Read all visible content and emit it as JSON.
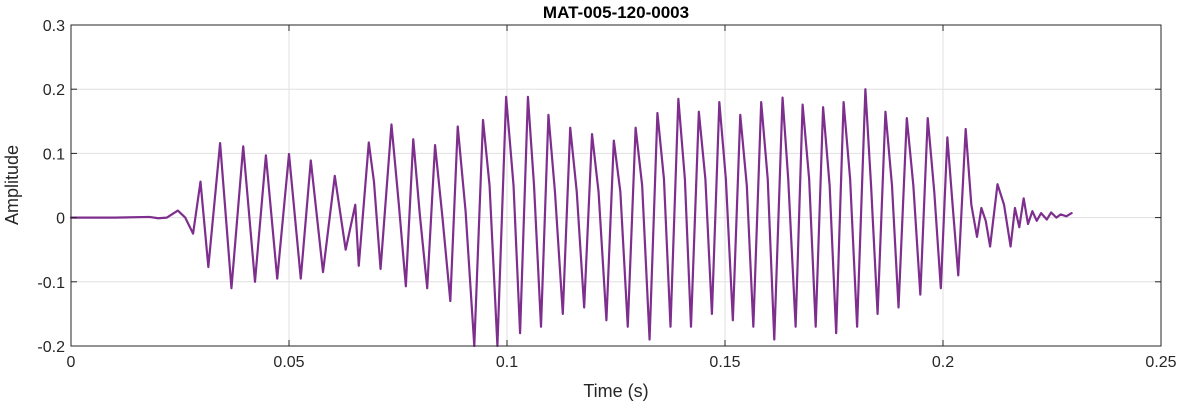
{
  "chart_data": {
    "type": "line",
    "title": "MAT-005-120-0003",
    "xlabel": "Time (s)",
    "ylabel": "Amplitude",
    "xlim": [
      0,
      0.25
    ],
    "ylim": [
      -0.2,
      0.3
    ],
    "xticks": [
      0,
      0.05,
      0.1,
      0.15,
      0.2,
      0.25
    ],
    "xtick_labels": [
      "0",
      "0.05",
      "0.1",
      "0.15",
      "0.2",
      "0.25"
    ],
    "yticks": [
      -0.2,
      -0.1,
      0,
      0.1,
      0.2,
      0.3
    ],
    "ytick_labels": [
      "-0.2",
      "-0.1",
      "0",
      "0.1",
      "0.2",
      "0.3"
    ],
    "grid": true,
    "series": [
      {
        "color": "#7e2f8e",
        "points": [
          [
            0.0,
            0.0
          ],
          [
            0.01,
            0.0
          ],
          [
            0.018,
            0.001
          ],
          [
            0.02,
            -0.001
          ],
          [
            0.022,
            0.0
          ],
          [
            0.0245,
            0.011
          ],
          [
            0.0262,
            0.0
          ],
          [
            0.028,
            -0.025
          ],
          [
            0.0297,
            0.056
          ],
          [
            0.0315,
            -0.077
          ],
          [
            0.0342,
            0.116
          ],
          [
            0.0368,
            -0.11
          ],
          [
            0.0395,
            0.111
          ],
          [
            0.0422,
            -0.1
          ],
          [
            0.0447,
            0.097
          ],
          [
            0.0473,
            -0.095
          ],
          [
            0.05,
            0.099
          ],
          [
            0.0527,
            -0.095
          ],
          [
            0.055,
            0.089
          ],
          [
            0.0578,
            -0.085
          ],
          [
            0.0605,
            0.065
          ],
          [
            0.063,
            -0.05
          ],
          [
            0.0652,
            0.02
          ],
          [
            0.066,
            -0.075
          ],
          [
            0.0683,
            0.117
          ],
          [
            0.0695,
            0.055
          ],
          [
            0.071,
            -0.08
          ],
          [
            0.0735,
            0.145
          ],
          [
            0.0752,
            0.02
          ],
          [
            0.0768,
            -0.107
          ],
          [
            0.0785,
            0.122
          ],
          [
            0.08,
            0.005
          ],
          [
            0.0817,
            -0.11
          ],
          [
            0.0835,
            0.113
          ],
          [
            0.0852,
            0.0
          ],
          [
            0.087,
            -0.13
          ],
          [
            0.0887,
            0.142
          ],
          [
            0.0905,
            0.01
          ],
          [
            0.0925,
            -0.2
          ],
          [
            0.0945,
            0.152
          ],
          [
            0.096,
            0.05
          ],
          [
            0.0978,
            -0.2
          ],
          [
            0.0998,
            0.188
          ],
          [
            0.1015,
            0.05
          ],
          [
            0.103,
            -0.18
          ],
          [
            0.1048,
            0.188
          ],
          [
            0.1062,
            0.05
          ],
          [
            0.1078,
            -0.17
          ],
          [
            0.1095,
            0.16
          ],
          [
            0.111,
            0.04
          ],
          [
            0.1128,
            -0.15
          ],
          [
            0.1145,
            0.14
          ],
          [
            0.116,
            0.04
          ],
          [
            0.1177,
            -0.14
          ],
          [
            0.1195,
            0.13
          ],
          [
            0.121,
            0.04
          ],
          [
            0.1228,
            -0.16
          ],
          [
            0.1245,
            0.12
          ],
          [
            0.126,
            0.04
          ],
          [
            0.1277,
            -0.17
          ],
          [
            0.1295,
            0.14
          ],
          [
            0.131,
            0.05
          ],
          [
            0.1327,
            -0.19
          ],
          [
            0.1345,
            0.163
          ],
          [
            0.136,
            0.06
          ],
          [
            0.1375,
            -0.17
          ],
          [
            0.1393,
            0.185
          ],
          [
            0.1408,
            0.06
          ],
          [
            0.1422,
            -0.17
          ],
          [
            0.144,
            0.165
          ],
          [
            0.1455,
            0.06
          ],
          [
            0.147,
            -0.15
          ],
          [
            0.1487,
            0.18
          ],
          [
            0.1502,
            0.06
          ],
          [
            0.1518,
            -0.16
          ],
          [
            0.1535,
            0.16
          ],
          [
            0.155,
            0.05
          ],
          [
            0.1565,
            -0.17
          ],
          [
            0.1583,
            0.18
          ],
          [
            0.1598,
            0.06
          ],
          [
            0.1613,
            -0.19
          ],
          [
            0.1632,
            0.187
          ],
          [
            0.1645,
            0.06
          ],
          [
            0.1662,
            -0.17
          ],
          [
            0.1678,
            0.176
          ],
          [
            0.1693,
            0.06
          ],
          [
            0.1708,
            -0.17
          ],
          [
            0.1725,
            0.172
          ],
          [
            0.174,
            0.05
          ],
          [
            0.1755,
            -0.18
          ],
          [
            0.1772,
            0.18
          ],
          [
            0.1787,
            0.06
          ],
          [
            0.1803,
            -0.17
          ],
          [
            0.1822,
            0.2
          ],
          [
            0.1835,
            0.05
          ],
          [
            0.185,
            -0.15
          ],
          [
            0.1868,
            0.165
          ],
          [
            0.1883,
            0.05
          ],
          [
            0.1898,
            -0.14
          ],
          [
            0.1917,
            0.155
          ],
          [
            0.1932,
            0.05
          ],
          [
            0.1948,
            -0.12
          ],
          [
            0.1965,
            0.155
          ],
          [
            0.198,
            0.04
          ],
          [
            0.1995,
            -0.11
          ],
          [
            0.201,
            0.125
          ],
          [
            0.2022,
            0.02
          ],
          [
            0.2035,
            -0.09
          ],
          [
            0.2052,
            0.138
          ],
          [
            0.2065,
            0.02
          ],
          [
            0.2078,
            -0.03
          ],
          [
            0.2088,
            0.015
          ],
          [
            0.2098,
            -0.005
          ],
          [
            0.2108,
            -0.045
          ],
          [
            0.2125,
            0.052
          ],
          [
            0.214,
            0.02
          ],
          [
            0.2155,
            -0.045
          ],
          [
            0.2165,
            0.015
          ],
          [
            0.2175,
            -0.015
          ],
          [
            0.2185,
            0.03
          ],
          [
            0.2195,
            -0.01
          ],
          [
            0.2205,
            0.01
          ],
          [
            0.2215,
            -0.005
          ],
          [
            0.2225,
            0.007
          ],
          [
            0.2238,
            -0.003
          ],
          [
            0.2248,
            0.008
          ],
          [
            0.226,
            0.0
          ],
          [
            0.227,
            0.005
          ],
          [
            0.2283,
            0.002
          ],
          [
            0.2295,
            0.007
          ]
        ]
      }
    ]
  }
}
